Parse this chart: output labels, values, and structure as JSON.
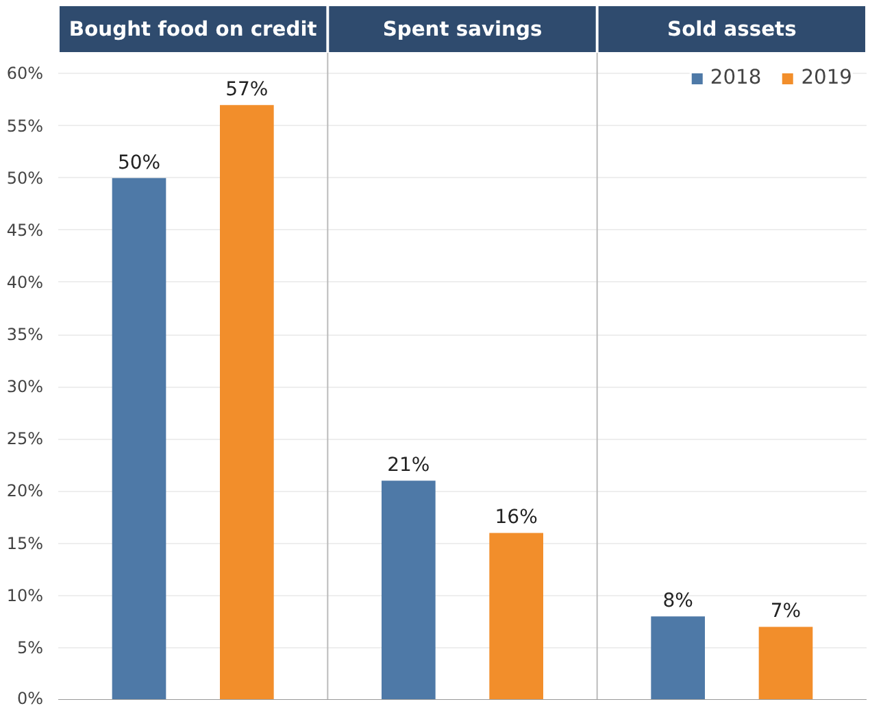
{
  "chart_data": {
    "type": "bar",
    "categories": [
      "Bought food on credit",
      "Spent savings",
      "Sold assets"
    ],
    "series": [
      {
        "name": "2018",
        "color": "#4e79a7",
        "values": [
          50,
          21,
          8
        ],
        "value_labels": [
          "50%",
          "21%",
          "8%"
        ]
      },
      {
        "name": "2019",
        "color": "#f28e2b",
        "values": [
          57,
          16,
          7
        ],
        "value_labels": [
          "57%",
          "16%",
          "7%"
        ]
      }
    ],
    "ylim": [
      0,
      62
    ],
    "yticks": [
      {
        "value": 0,
        "label": "0%"
      },
      {
        "value": 5,
        "label": "5%"
      },
      {
        "value": 10,
        "label": "10%"
      },
      {
        "value": 15,
        "label": "15%"
      },
      {
        "value": 20,
        "label": "20%"
      },
      {
        "value": 25,
        "label": "25%"
      },
      {
        "value": 30,
        "label": "30%"
      },
      {
        "value": 35,
        "label": "35%"
      },
      {
        "value": 40,
        "label": "40%"
      },
      {
        "value": 45,
        "label": "45%"
      },
      {
        "value": 50,
        "label": "50%"
      },
      {
        "value": 55,
        "label": "55%"
      },
      {
        "value": 60,
        "label": "60%"
      }
    ],
    "grid": "y",
    "legend": "top right"
  }
}
